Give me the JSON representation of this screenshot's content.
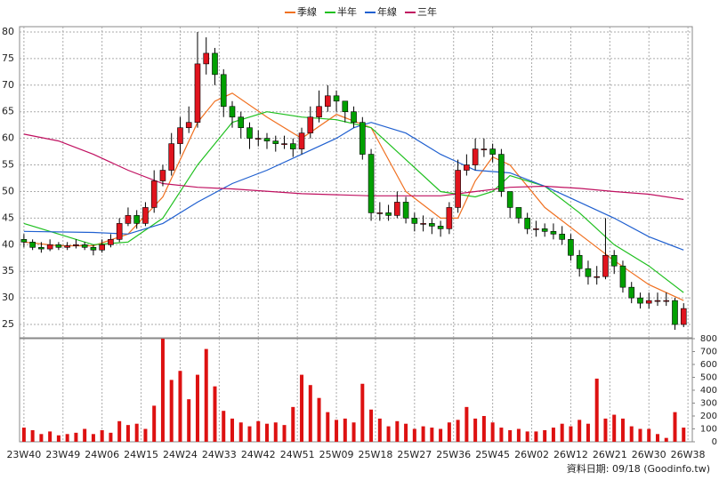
{
  "chart_data": {
    "type": "candlestick",
    "legend": [
      "季線",
      "半年",
      "年線",
      "三年"
    ],
    "footnote": "資料日期: 09/18 (Goodinfo.tw)",
    "xlim": [
      -1,
      154
    ],
    "xticks": [
      {
        "value": 0,
        "label": "23W40"
      },
      {
        "value": 9,
        "label": "23W49"
      },
      {
        "value": 18,
        "label": "24W06"
      },
      {
        "value": 27,
        "label": "24W15"
      },
      {
        "value": 36,
        "label": "24W24"
      },
      {
        "value": 45,
        "label": "24W33"
      },
      {
        "value": 54,
        "label": "24W42"
      },
      {
        "value": 63,
        "label": "24W51"
      },
      {
        "value": 72,
        "label": "25W09"
      },
      {
        "value": 81,
        "label": "25W18"
      },
      {
        "value": 90,
        "label": "25W27"
      },
      {
        "value": 99,
        "label": "25W36"
      },
      {
        "value": 108,
        "label": "25W45"
      },
      {
        "value": 117,
        "label": "26W02"
      },
      {
        "value": 126,
        "label": "26W12"
      },
      {
        "value": 135,
        "label": "26W21"
      },
      {
        "value": 144,
        "label": "26W30"
      },
      {
        "value": 153,
        "label": "26W38"
      }
    ],
    "ylim": [
      22.5,
      81
    ],
    "yticks": [
      25,
      30,
      35,
      40,
      45,
      50,
      55,
      60,
      65,
      70,
      75,
      80
    ],
    "y2lim": [
      0,
      800
    ],
    "y2ticks": [
      0,
      100,
      200,
      300,
      400,
      500,
      600,
      700,
      800
    ],
    "grid": true,
    "up_color": "#e0141e",
    "down_color": "#00a000",
    "volume_color": "#dd1111",
    "x": [
      0,
      2,
      4,
      6,
      8,
      10,
      12,
      14,
      16,
      18,
      20,
      22,
      24,
      26,
      28,
      30,
      32,
      34,
      36,
      38,
      40,
      42,
      44,
      46,
      48,
      50,
      52,
      54,
      56,
      58,
      60,
      62,
      64,
      66,
      68,
      70,
      72,
      74,
      76,
      78,
      80,
      82,
      84,
      86,
      88,
      90,
      92,
      94,
      96,
      98,
      100,
      102,
      104,
      106,
      108,
      110,
      112,
      114,
      116,
      118,
      120,
      122,
      124,
      126,
      128,
      130,
      132,
      134,
      136,
      138,
      140,
      142,
      144,
      146,
      148,
      150,
      152
    ],
    "open": [
      41,
      40.5,
      39.5,
      39.2,
      40,
      39.5,
      39.8,
      40,
      39.5,
      39,
      40,
      41,
      44,
      45.5,
      44,
      47,
      52,
      54,
      59,
      62,
      63,
      74,
      76,
      72,
      66,
      64,
      62,
      60,
      60,
      59.5,
      59,
      59,
      58,
      61,
      64,
      66,
      68,
      67,
      65,
      63,
      57,
      46,
      46,
      45.5,
      48,
      45,
      44,
      44,
      43.5,
      43,
      47,
      54,
      55,
      58,
      58,
      57,
      50,
      47,
      45,
      43,
      43,
      42.5,
      42,
      41,
      38,
      35.5,
      34,
      34,
      38,
      36,
      32,
      30,
      29,
      29.5,
      29.5,
      29.5,
      25
    ],
    "high": [
      42,
      41,
      40.5,
      41,
      40.5,
      40.5,
      41,
      40.5,
      40,
      41,
      42,
      45,
      47,
      46.5,
      48,
      54,
      55,
      61,
      64,
      66,
      80,
      79,
      77,
      73,
      67,
      65,
      63,
      61.5,
      61,
      60.5,
      60.5,
      60,
      62,
      66,
      69,
      70,
      69,
      67,
      66,
      64,
      58,
      48,
      47.5,
      50,
      49,
      46,
      45.5,
      45,
      44.5,
      48,
      56,
      57,
      60,
      60,
      59,
      58,
      50,
      47,
      46,
      44.5,
      44,
      44,
      43.5,
      42,
      39,
      37,
      36,
      45,
      39,
      37,
      33,
      31,
      31,
      31,
      31,
      30,
      29
    ],
    "low": [
      39.5,
      39,
      38.5,
      38.8,
      39,
      39,
      39.3,
      39,
      38,
      38.5,
      39.5,
      40.5,
      43.5,
      43,
      43.5,
      46,
      51,
      53,
      57,
      61,
      62,
      72,
      70,
      64,
      62,
      60,
      58,
      58.5,
      58,
      57.5,
      58,
      56.5,
      57,
      60,
      63,
      65,
      65,
      63,
      62,
      56,
      44.5,
      44.5,
      44.5,
      45,
      44,
      42.5,
      42.5,
      42,
      41.5,
      42,
      46,
      53,
      54,
      56.5,
      55.5,
      49,
      45,
      44,
      42,
      41.5,
      41.5,
      41,
      40,
      37,
      34,
      32.5,
      32.5,
      33.5,
      34.5,
      31,
      29,
      28,
      28,
      28.5,
      28.5,
      24,
      24.5
    ],
    "close": [
      40.5,
      39.5,
      39.2,
      40,
      39.5,
      39.8,
      40,
      39.5,
      39,
      40,
      41,
      44,
      45.5,
      44,
      47,
      52,
      54,
      59,
      62,
      63,
      74,
      76,
      72,
      66,
      64,
      62,
      60,
      60,
      59.5,
      59,
      59,
      58,
      61,
      64,
      66,
      68,
      67,
      65,
      63,
      57,
      46,
      46,
      45.5,
      48,
      45,
      44,
      44,
      43.5,
      43,
      47,
      54,
      55,
      58,
      58,
      57,
      50,
      47,
      45,
      43,
      43,
      42.5,
      42,
      41,
      38,
      35.5,
      34,
      34,
      38,
      36,
      32,
      30,
      29,
      29.5,
      29.5,
      29.5,
      25,
      28
    ],
    "volume": [
      110,
      90,
      60,
      80,
      50,
      60,
      70,
      100,
      60,
      90,
      70,
      160,
      130,
      140,
      100,
      280,
      800,
      480,
      550,
      330,
      520,
      720,
      430,
      240,
      180,
      150,
      120,
      160,
      140,
      150,
      130,
      270,
      520,
      440,
      340,
      230,
      170,
      180,
      150,
      450,
      250,
      180,
      120,
      160,
      140,
      100,
      120,
      110,
      100,
      150,
      170,
      270,
      180,
      200,
      150,
      110,
      90,
      100,
      80,
      80,
      90,
      110,
      140,
      120,
      170,
      140,
      490,
      180,
      210,
      180,
      120,
      100,
      100,
      60,
      30,
      230,
      110
    ],
    "lines": [
      {
        "name": "季線",
        "color": "#f07020",
        "x": [
          0,
          8,
          16,
          24,
          32,
          40,
          44,
          48,
          56,
          64,
          72,
          80,
          84,
          88,
          96,
          100,
          104,
          108,
          112,
          120,
          128,
          136,
          144,
          152
        ],
        "values": [
          40.5,
          39.8,
          39.8,
          42,
          49,
          63,
          67,
          68.5,
          64,
          60,
          64.5,
          62,
          56,
          50,
          45,
          45,
          52,
          56.5,
          55,
          47,
          42,
          37,
          32.5,
          29.5
        ]
      },
      {
        "name": "半年",
        "color": "#20c020",
        "x": [
          0,
          8,
          16,
          24,
          32,
          40,
          48,
          56,
          64,
          72,
          80,
          88,
          96,
          104,
          108,
          112,
          120,
          128,
          136,
          144,
          152
        ],
        "values": [
          44,
          42,
          40,
          40.5,
          45,
          55,
          63,
          65,
          64,
          63.5,
          62,
          56,
          50,
          49,
          50,
          53,
          51,
          46,
          40,
          36,
          31
        ]
      },
      {
        "name": "年線",
        "color": "#2060d0",
        "x": [
          0,
          16,
          24,
          32,
          40,
          48,
          56,
          64,
          72,
          76,
          80,
          88,
          96,
          104,
          112,
          120,
          128,
          136,
          144,
          152
        ],
        "values": [
          42.5,
          42.3,
          42,
          44,
          48,
          51.5,
          54,
          57,
          60,
          62,
          63,
          61,
          57,
          54,
          53.5,
          51,
          48,
          45,
          41.5,
          39
        ]
      },
      {
        "name": "三年",
        "color": "#c01060",
        "x": [
          0,
          8,
          16,
          24,
          32,
          40,
          48,
          64,
          80,
          96,
          104,
          112,
          120,
          128,
          136,
          144,
          152
        ],
        "values": [
          60.8,
          59.5,
          57,
          54,
          51.5,
          50.8,
          50.5,
          49.6,
          49.2,
          49.2,
          50,
          50.8,
          51,
          50.6,
          50,
          49.5,
          48.5
        ]
      }
    ]
  }
}
